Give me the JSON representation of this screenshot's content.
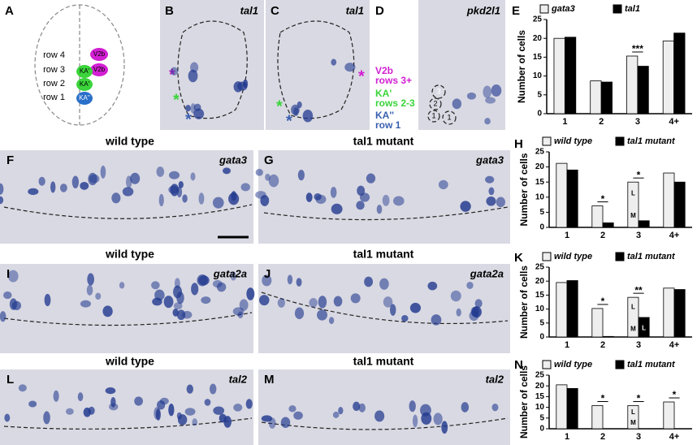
{
  "panels": {
    "A": {
      "letter": "A",
      "rows": [
        "row 4",
        "row 3",
        "row 2",
        "row 1"
      ],
      "cells": [
        "V2b",
        "V2b",
        "KA'",
        "KA'",
        "KA''"
      ]
    },
    "B": {
      "letter": "B",
      "gene": "tal1",
      "stars": [
        "*",
        "*",
        "*"
      ]
    },
    "C": {
      "letter": "C",
      "gene": "tal1",
      "stars": [
        "*",
        "*",
        "*"
      ]
    },
    "D": {
      "letter": "D",
      "gene": "pkd2l1",
      "labels": [
        "V2b",
        "rows 3+",
        "KA'",
        "rows 2-3",
        "KA''",
        "row 1"
      ],
      "cells": [
        "3",
        "2",
        "1",
        "1"
      ]
    },
    "E": {
      "letter": "E"
    },
    "F": {
      "letter": "F",
      "title": "wild type",
      "gene": "gata3"
    },
    "G": {
      "letter": "G",
      "title": "tal1 mutant",
      "gene": "gata3"
    },
    "H": {
      "letter": "H"
    },
    "I": {
      "letter": "I",
      "title": "wild type",
      "gene": "gata2a"
    },
    "J": {
      "letter": "J",
      "title": "tal1 mutant",
      "gene": "gata2a"
    },
    "K": {
      "letter": "K"
    },
    "L": {
      "letter": "L",
      "title": "wild type",
      "gene": "tal2"
    },
    "M": {
      "letter": "M",
      "title": "tal1 mutant",
      "gene": "tal2"
    },
    "N": {
      "letter": "N"
    }
  },
  "chart_data": [
    {
      "type": "bar",
      "categories": [
        "1",
        "2",
        "3",
        "4+"
      ],
      "ylabel": "Number of cells",
      "series": [
        {
          "name": "gata3",
          "color": "#eeeeee",
          "values": [
            20,
            8.7,
            15.3,
            19.3
          ]
        },
        {
          "name": "tal1",
          "color": "#000000",
          "values": [
            20.3,
            8.4,
            12.6,
            21.4
          ]
        }
      ],
      "ylim": [
        0,
        25
      ],
      "yticks": [
        0,
        5,
        10,
        15,
        20,
        25
      ],
      "annotations": [
        "***"
      ]
    },
    {
      "type": "bar",
      "categories": [
        "1",
        "2",
        "3",
        "4+"
      ],
      "ylabel": "Number of cells",
      "series": [
        {
          "name": "wild type",
          "color": "#eeeeee",
          "values": [
            21.2,
            7.1,
            15,
            18
          ]
        },
        {
          "name": "tal1 mutant",
          "color": "#000000",
          "values": [
            19,
            1.5,
            2.2,
            15
          ]
        }
      ],
      "ylim": [
        0,
        25
      ],
      "yticks": [
        0,
        5,
        10,
        15,
        20,
        25
      ],
      "annotations": [
        "*",
        "*",
        "L",
        "M"
      ]
    },
    {
      "type": "bar",
      "categories": [
        "1",
        "2",
        "3",
        "4+"
      ],
      "ylabel": "Number of cells",
      "series": [
        {
          "name": "wild type",
          "color": "#eeeeee",
          "values": [
            19.5,
            10.2,
            14.2,
            17.5
          ]
        },
        {
          "name": "tal1 mutant",
          "color": "#000000",
          "values": [
            20.2,
            0.2,
            7,
            17
          ]
        }
      ],
      "ylim": [
        0,
        25
      ],
      "yticks": [
        0,
        5,
        10,
        15,
        20,
        25
      ],
      "annotations": [
        "*",
        "**",
        "L",
        "M",
        "L"
      ]
    },
    {
      "type": "bar",
      "categories": [
        "1",
        "2",
        "3",
        "4+"
      ],
      "ylabel": "Number of cells",
      "series": [
        {
          "name": "wild type",
          "color": "#eeeeee",
          "values": [
            20.5,
            10.8,
            10.8,
            12.5
          ]
        },
        {
          "name": "tal1 mutant",
          "color": "#000000",
          "values": [
            18.8,
            0,
            0,
            0
          ]
        }
      ],
      "ylim": [
        0,
        25
      ],
      "yticks": [
        0,
        5,
        10,
        15,
        20,
        25
      ],
      "annotations": [
        "*",
        "*",
        "*",
        "L",
        "M"
      ]
    }
  ]
}
